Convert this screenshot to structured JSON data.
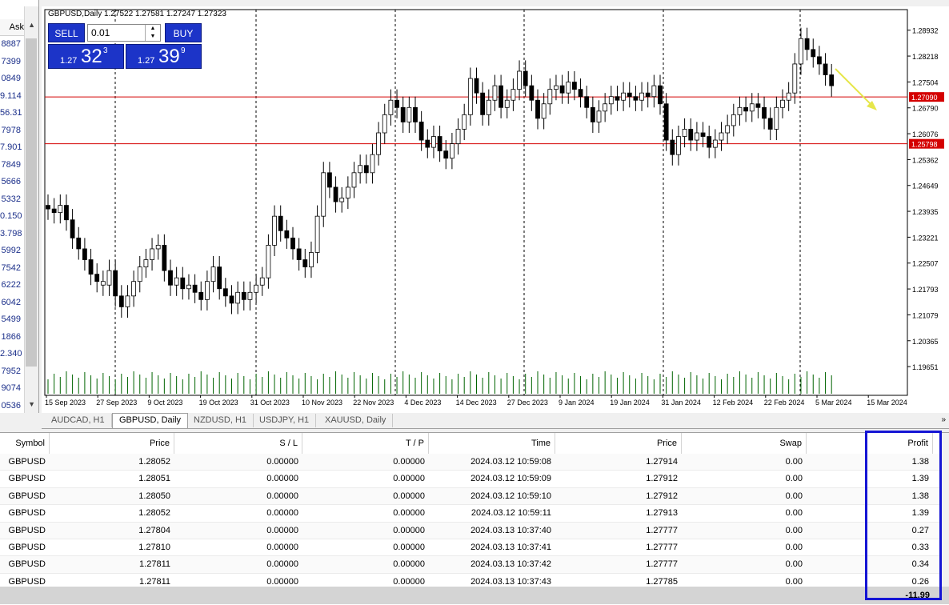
{
  "market_watch": {
    "ask_header": "Ask",
    "prices": [
      "8887",
      "7399",
      "0849",
      "9.114",
      "56.31",
      "7978",
      "7.901",
      "7849",
      "5666",
      "5332",
      "0.150",
      "3.798",
      "5992",
      "7542",
      "6222",
      "6042",
      "5499",
      "1866",
      "2.340",
      "7952",
      "9074",
      "0536"
    ]
  },
  "chart": {
    "title": "GBPUSD,Daily  1.27522 1.27581 1.27247 1.27323",
    "price_labels": [
      "1.28932",
      "1.28218",
      "1.27504",
      "1.26790",
      "1.26076",
      "1.25362",
      "1.24649",
      "1.23935",
      "1.23221",
      "1.22507",
      "1.21793",
      "1.21079",
      "1.20365",
      "1.19651"
    ],
    "levels": [
      "1.27090",
      "1.25798"
    ],
    "date_labels": [
      "15 Sep 2023",
      "27 Sep 2023",
      "9 Oct 2023",
      "19 Oct 2023",
      "31 Oct 2023",
      "10 Nov 2023",
      "22 Nov 2023",
      "4 Dec 2023",
      "14 Dec 2023",
      "27 Dec 2023",
      "9 Jan 2024",
      "19 Jan 2024",
      "31 Jan 2024",
      "12 Feb 2024",
      "22 Feb 2024",
      "5 Mar 2024",
      "15 Mar 2024"
    ],
    "colors": {
      "level_line": "#d40000",
      "volume": "#006400",
      "arrow": "#e6e64a"
    }
  },
  "one_click": {
    "sell_label": "SELL",
    "buy_label": "BUY",
    "lot": "0.01",
    "sell_small": "1.27",
    "sell_big": "32",
    "sell_sup": "3",
    "buy_small": "1.27",
    "buy_big": "39",
    "buy_sup": "9"
  },
  "tabs": [
    "AUDCAD, H1",
    "GBPUSD, Daily",
    "NZDUSD, H1",
    "USDJPY, H1",
    "XAUUSD, Daily"
  ],
  "active_tab": "GBPUSD, Daily",
  "orders": {
    "headers": {
      "symbol": "Symbol",
      "price": "Price",
      "sl": "S / L",
      "tp": "T / P",
      "time": "Time",
      "price2": "Price",
      "swap": "Swap",
      "profit": "Profit"
    },
    "rows": [
      {
        "symbol": "GBPUSD",
        "price": "1.28052",
        "sl": "0.00000",
        "tp": "0.00000",
        "time": "2024.03.12 10:59:08",
        "price2": "1.27914",
        "swap": "0.00",
        "profit": "1.38"
      },
      {
        "symbol": "GBPUSD",
        "price": "1.28051",
        "sl": "0.00000",
        "tp": "0.00000",
        "time": "2024.03.12 10:59:09",
        "price2": "1.27912",
        "swap": "0.00",
        "profit": "1.39"
      },
      {
        "symbol": "GBPUSD",
        "price": "1.28050",
        "sl": "0.00000",
        "tp": "0.00000",
        "time": "2024.03.12 10:59:10",
        "price2": "1.27912",
        "swap": "0.00",
        "profit": "1.38"
      },
      {
        "symbol": "GBPUSD",
        "price": "1.28052",
        "sl": "0.00000",
        "tp": "0.00000",
        "time": "2024.03.12 10:59:11",
        "price2": "1.27913",
        "swap": "0.00",
        "profit": "1.39"
      },
      {
        "symbol": "GBPUSD",
        "price": "1.27804",
        "sl": "0.00000",
        "tp": "0.00000",
        "time": "2024.03.13 10:37:40",
        "price2": "1.27777",
        "swap": "0.00",
        "profit": "0.27"
      },
      {
        "symbol": "GBPUSD",
        "price": "1.27810",
        "sl": "0.00000",
        "tp": "0.00000",
        "time": "2024.03.13 10:37:41",
        "price2": "1.27777",
        "swap": "0.00",
        "profit": "0.33"
      },
      {
        "symbol": "GBPUSD",
        "price": "1.27811",
        "sl": "0.00000",
        "tp": "0.00000",
        "time": "2024.03.13 10:37:42",
        "price2": "1.27777",
        "swap": "0.00",
        "profit": "0.34"
      },
      {
        "symbol": "GBPUSD",
        "price": "1.27811",
        "sl": "0.00000",
        "tp": "0.00000",
        "time": "2024.03.13 10:37:43",
        "price2": "1.27785",
        "swap": "0.00",
        "profit": "0.26"
      }
    ],
    "total_profit": "-11.99"
  }
}
